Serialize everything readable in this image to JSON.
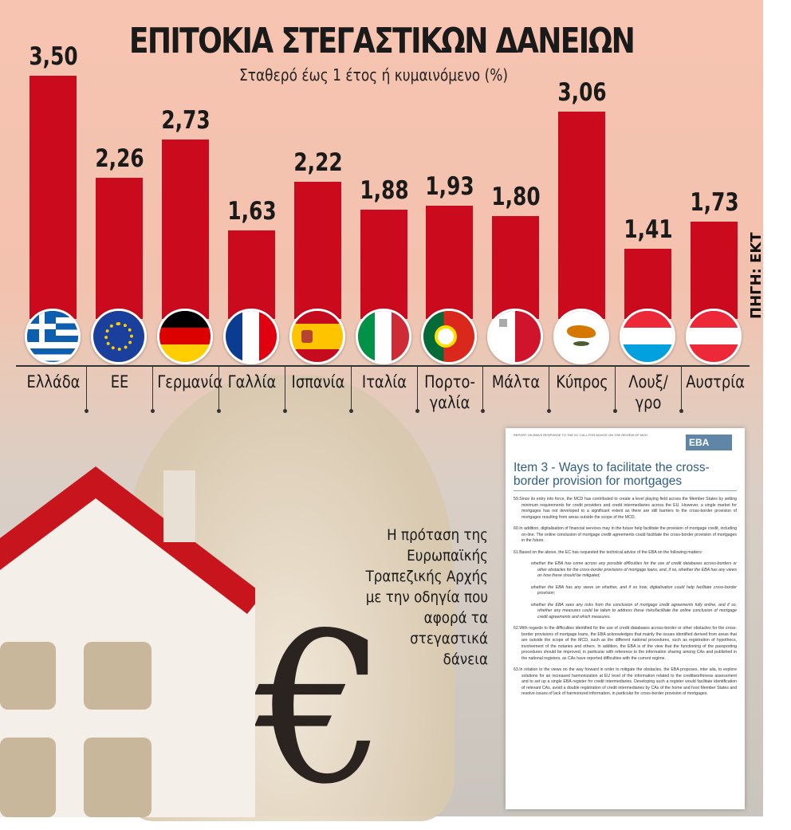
{
  "chart_data": {
    "type": "bar",
    "title": "ΕΠΙΤΟΚΙΑ ΣΤΕΓΑΣΤΙΚΩΝ ΔΑΝΕΙΩΝ",
    "subtitle": "Σταθερό έως 1 έτος ή κυμαινόμενο (%)",
    "source": "ΠΗΓΗ: ΕΚΤ",
    "categories": [
      "Ελλάδα",
      "ΕΕ",
      "Γερμανία",
      "Γαλλία",
      "Ισπανία",
      "Ιταλία",
      "Πορτο-γαλία",
      "Μάλτα",
      "Κύπρος",
      "Λουξ/γρο",
      "Αυστρία"
    ],
    "value_labels": [
      "3,50",
      "2,26",
      "2,73",
      "1,63",
      "2,22",
      "1,88",
      "1,93",
      "1,80",
      "3,06",
      "1,41",
      "1,73"
    ],
    "values": [
      3.5,
      2.26,
      2.73,
      1.63,
      2.22,
      1.88,
      1.93,
      1.8,
      3.06,
      1.41,
      1.73
    ],
    "flags": [
      "greece",
      "eu",
      "germany",
      "france",
      "spain",
      "italy",
      "portugal",
      "malta",
      "cyprus",
      "luxembourg",
      "austria"
    ],
    "bar_color": "#cc0a1e"
  },
  "caption": "Η πρόταση της Ευρωπαϊκής Τραπεζικής Αρχής με την οδηγία που αφορά τα στεγαστικά δάνεια",
  "document": {
    "header": "REPORT ON EBA'S RESPONSE TO THE EC CALL FOR ADVICE ON THE REVIEW OF MCD",
    "logo": "EBA",
    "title": "Item 3 - Ways to facilitate the cross-border provision for mortgages",
    "paragraphs": [
      "59.Since its entry into force, the MCD has contributed to create a level playing field across the Member States by setting minimum requirements for credit providers and credit intermediaries across the EU. However, a single market for mortgages has not developed to a significant extent as there are still barriers to the cross-border provision of mortgages resulting from areas outside the scope of the MCD.",
      "60.In addition, digitalisation of financial services may in the future help facilitate the provision of mortgage credit, including on-line. The online conclusion of mortgage credit agreements could facilitate the cross-border provision of mortgages in the future.",
      "61.Based on the above, the EC has requested the technical advice of the EBA on the following matters:"
    ],
    "bullets": [
      "whether the EBA has come across any possible difficulties for the use of credit databases across-borders or other obstacles for the cross-border provisions of mortgage loans, and, if so, whether the EBA has any views on how these should be mitigated;",
      "whether the EBA has any views on whether, and if so how, digitalisation could help facilitate cross-border provision;",
      "whether the EBA sees any risks from the conclusion of mortgage credit agreements fully online, and if so, whether any measures could be taken to address these risks/facilitate the online conclusion of mortgage credit agreements and which measures."
    ],
    "paragraphs2": [
      "62.With regards to the difficulties identified for the use of credit databases across-border or other obstacles for the cross-border provisions of mortgage loans, the EBA acknowledges that mainly the issues identified derived from areas that are outside the scope of the MCD, such as the different national procedures, such as registration of hypothecs, involvement of the notaries and others. In addition, the EBA is of the view that the functioning of the passporting procedures should be improved, in particular with reference to the information sharing among CAs and published in the national registers, as CAs have reported difficulties with the current regime.",
      "63.In relation to the views on the way forward in order to mitigate the obstacles, the EBA proposes, inter alia, to explore solutions for an increased harmonization at EU level of the information related to the creditworthiness assessment and to set up a single EBA register for credit intermediaries. Developing such a register would facilitate identification of relevant CAs, avoid a double registration of credit intermediaries by CAs of the home and host Member States and resolve issues of lack of harmonized information, in particular for cross-border provision of mortgages."
    ]
  }
}
